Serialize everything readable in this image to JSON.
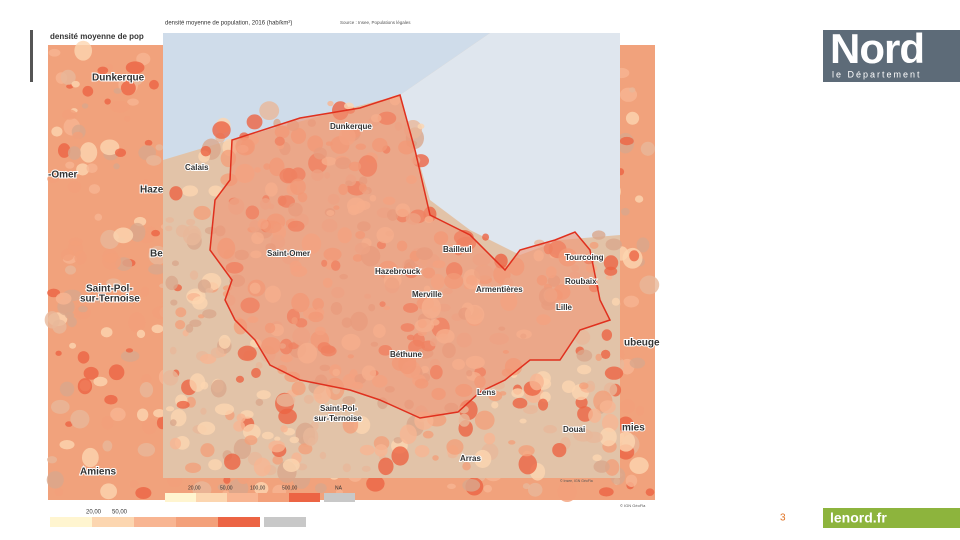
{
  "header": {
    "logo_title": "Nord",
    "logo_subtitle": "le Département"
  },
  "back_map": {
    "title": "densité moyenne de pop",
    "places": [
      "Dunkerque",
      "-Omer",
      "Haze",
      "Be",
      "Saint-Pol-",
      "sur-Ternoise",
      "Amiens",
      "ubeuge",
      "mies"
    ],
    "legend": [
      "20,00",
      "50,00"
    ],
    "credits": "© IGN GéoFla"
  },
  "front_map": {
    "title": "densité moyenne de population, 2016 (hab/km²)",
    "source": "Source : Insee, Populations légales",
    "places": [
      "Dunkerque",
      "Calais",
      "Saint-Omer",
      "Hazebrouck",
      "Bailleul",
      "Tourcoing",
      "Roubaix",
      "Armentières",
      "Lille",
      "Merville",
      "Béthune",
      "Lens",
      "Saint-Pol-",
      "sur-Ternoise",
      "Douai",
      "Arras"
    ],
    "legend": [
      "20,00",
      "50,00",
      "100,00",
      "500,00",
      "NA"
    ],
    "credits": "© Insee, IGN GéoFla"
  },
  "footer": {
    "page_number": "3",
    "site": "lenord.fr"
  }
}
